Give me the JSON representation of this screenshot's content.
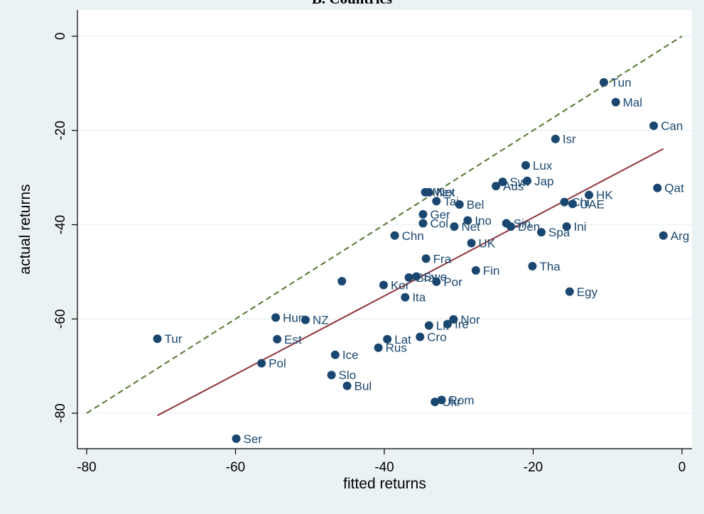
{
  "chart_data": {
    "type": "scatter",
    "title": "B. Countries",
    "xlabel": "fitted returns",
    "ylabel": "actual returns",
    "xlim": [
      -80,
      0
    ],
    "ylim": [
      -80,
      0
    ],
    "xticks": [
      -80,
      -60,
      -40,
      -20,
      0
    ],
    "yticks": [
      0,
      -20,
      -40,
      -60,
      -80
    ],
    "grid": true,
    "colors": {
      "points": "#1a476f",
      "fit_line": "#90353b",
      "diagonal": "#55752f",
      "plot_bg": "#ffffff",
      "page_bg": "#eaf2f3",
      "grid": "#eaf2f3"
    },
    "fit_line": {
      "x": [
        -70.5,
        -2.5
      ],
      "y": [
        -80.5,
        -23.9
      ]
    },
    "diagonal": {
      "x": [
        -80,
        0
      ],
      "y": [
        -80,
        0
      ]
    },
    "points": [
      {
        "label": "Tun",
        "x": -10.5,
        "y": -9.8
      },
      {
        "label": "Mal",
        "x": -8.9,
        "y": -14.0
      },
      {
        "label": "Can",
        "x": -3.8,
        "y": -19.0
      },
      {
        "label": "Isr",
        "x": -17.0,
        "y": -21.8
      },
      {
        "label": "Lux",
        "x": -21.0,
        "y": -27.4
      },
      {
        "label": "Jap",
        "x": -20.8,
        "y": -30.7
      },
      {
        "label": "Swi",
        "x": -24.1,
        "y": -30.9
      },
      {
        "label": "Aus",
        "x": -25.0,
        "y": -31.8
      },
      {
        "label": "Qat",
        "x": -3.3,
        "y": -32.2
      },
      {
        "label": "HK",
        "x": -12.5,
        "y": -33.7
      },
      {
        "label": "Chi",
        "x": -15.8,
        "y": -35.2
      },
      {
        "label": "UAE",
        "x": -14.7,
        "y": -35.6
      },
      {
        "label": "Mex",
        "x": -34.5,
        "y": -33.1
      },
      {
        "label": "Net",
        "x": -34.0,
        "y": -33.1
      },
      {
        "label": "Tai",
        "x": -33.0,
        "y": -35.0
      },
      {
        "label": "Bel",
        "x": -29.9,
        "y": -35.7
      },
      {
        "label": "Ger",
        "x": -34.8,
        "y": -37.8
      },
      {
        "label": "Ino",
        "x": -28.8,
        "y": -39.1
      },
      {
        "label": "Col",
        "x": -34.8,
        "y": -39.7
      },
      {
        "label": "Sin",
        "x": -23.6,
        "y": -39.7
      },
      {
        "label": "Net",
        "x": -30.6,
        "y": -40.4
      },
      {
        "label": "Den",
        "x": -23.0,
        "y": -40.4
      },
      {
        "label": "Ini",
        "x": -15.5,
        "y": -40.4
      },
      {
        "label": "Spa",
        "x": -18.9,
        "y": -41.6
      },
      {
        "label": "Arg",
        "x": -2.5,
        "y": -42.3
      },
      {
        "label": "Chn",
        "x": -38.6,
        "y": -42.3
      },
      {
        "label": "UK",
        "x": -28.3,
        "y": -43.9
      },
      {
        "label": "Fra",
        "x": -34.4,
        "y": -47.2
      },
      {
        "label": "Tha",
        "x": -20.1,
        "y": -48.8
      },
      {
        "label": "Fin",
        "x": -27.7,
        "y": -49.7
      },
      {
        "label": "Bra",
        "x": -36.7,
        "y": -51.2
      },
      {
        "label": "Swe",
        "x": -35.7,
        "y": -51.0
      },
      {
        "label": "Por",
        "x": -33.0,
        "y": -52.1
      },
      {
        "label": "",
        "x": -45.7,
        "y": -52.0
      },
      {
        "label": "Kor",
        "x": -40.1,
        "y": -52.8
      },
      {
        "label": "Egy",
        "x": -15.1,
        "y": -54.2
      },
      {
        "label": "Ita",
        "x": -37.2,
        "y": -55.4
      },
      {
        "label": "Hun",
        "x": -54.6,
        "y": -59.7
      },
      {
        "label": "NZ",
        "x": -50.6,
        "y": -60.2
      },
      {
        "label": "Nor",
        "x": -30.7,
        "y": -60.1
      },
      {
        "label": "Ire",
        "x": -31.5,
        "y": -61.1
      },
      {
        "label": "Lit",
        "x": -34.0,
        "y": -61.4
      },
      {
        "label": "Cro",
        "x": -35.2,
        "y": -63.8
      },
      {
        "label": "Lat",
        "x": -39.6,
        "y": -64.3
      },
      {
        "label": "Tur",
        "x": -70.5,
        "y": -64.2
      },
      {
        "label": "Est",
        "x": -54.4,
        "y": -64.3
      },
      {
        "label": "Rus",
        "x": -40.8,
        "y": -66.1
      },
      {
        "label": "Ice",
        "x": -46.6,
        "y": -67.6
      },
      {
        "label": "Pol",
        "x": -56.5,
        "y": -69.4
      },
      {
        "label": "Slo",
        "x": -47.1,
        "y": -71.9
      },
      {
        "label": "Bul",
        "x": -45.0,
        "y": -74.2
      },
      {
        "label": "Rom",
        "x": -32.3,
        "y": -77.2
      },
      {
        "label": "Ukr",
        "x": -33.2,
        "y": -77.6
      },
      {
        "label": "Ser",
        "x": -59.9,
        "y": -85.4
      }
    ]
  }
}
